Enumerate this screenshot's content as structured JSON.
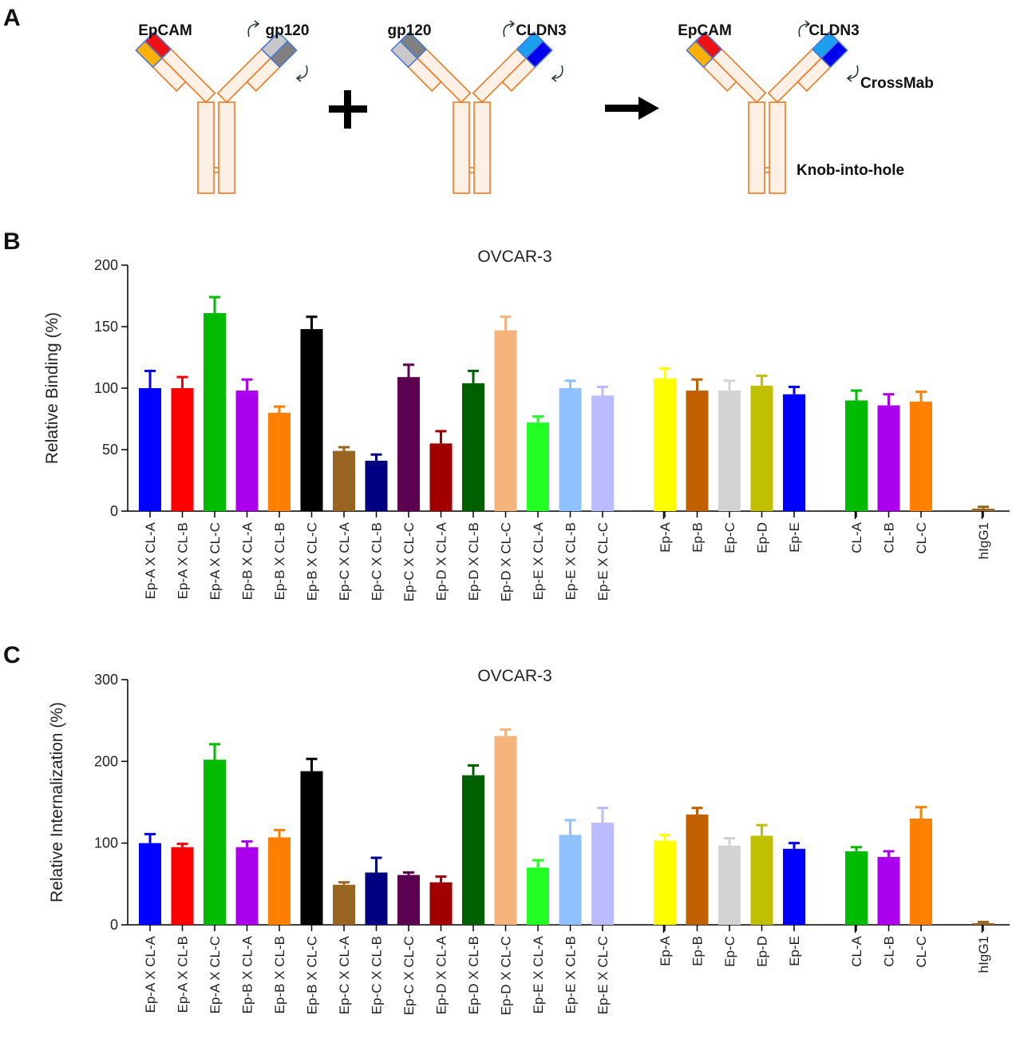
{
  "panel_labels": [
    "A",
    "B",
    "C"
  ],
  "diagram": {
    "labels": [
      "EpCAM",
      "gp120",
      "gp120",
      "CLDN3",
      "EpCAM",
      "CLDN3",
      "CrossMab",
      "Knob-into-hole"
    ]
  },
  "chart_data": [
    {
      "type": "bar",
      "title": "OVCAR-3",
      "ylabel": "Relative Binding (%)",
      "ylim": [
        0,
        200
      ],
      "yticks": [
        0,
        50,
        100,
        150,
        200
      ],
      "groups": [
        {
          "categories": [
            "Ep-A X CL-A",
            "Ep-A X CL-B",
            "Ep-A X CL-C",
            "Ep-B X CL-A",
            "Ep-B X CL-B",
            "Ep-B X CL-C",
            "Ep-C X CL-A",
            "Ep-C X CL-B",
            "Ep-C X CL-C",
            "Ep-D X CL-A",
            "Ep-D X CL-B",
            "Ep-D X CL-C",
            "Ep-E X CL-A",
            "Ep-E X CL-B",
            "Ep-E X CL-C"
          ],
          "values": [
            100,
            100,
            161,
            98,
            80,
            148,
            49,
            41,
            109,
            55,
            104,
            147,
            72,
            100,
            94
          ],
          "errors": [
            14,
            9,
            13,
            9,
            5,
            10,
            3,
            5,
            10,
            10,
            10,
            11,
            5,
            6,
            7
          ],
          "colors": [
            "#0000ff",
            "#ff0000",
            "#00bb00",
            "#aa00ee",
            "#ff8000",
            "#000000",
            "#996622",
            "#000080",
            "#5c0050",
            "#a00000",
            "#006000",
            "#f4b47c",
            "#22ff22",
            "#8fc0ff",
            "#bbbbff"
          ]
        },
        {
          "categories": [
            "Ep-A",
            "Ep-B",
            "Ep-C",
            "Ep-D",
            "Ep-E"
          ],
          "values": [
            108,
            98,
            98,
            102,
            95
          ],
          "errors": [
            8,
            9,
            8,
            8,
            6
          ],
          "colors": [
            "#ffff00",
            "#c06000",
            "#d3d3d3",
            "#c0c000",
            "#0000ff"
          ]
        },
        {
          "categories": [
            "CL-A",
            "CL-B",
            "CL-C"
          ],
          "values": [
            90,
            86,
            89
          ],
          "errors": [
            8,
            9,
            8
          ],
          "colors": [
            "#00bb00",
            "#aa00ee",
            "#ff8000"
          ]
        },
        {
          "categories": [
            "hIgG1"
          ],
          "values": [
            2
          ],
          "errors": [
            1.5
          ],
          "colors": [
            "#996622"
          ]
        }
      ]
    },
    {
      "type": "bar",
      "title": "OVCAR-3",
      "ylabel": "Relative Internalization (%)",
      "ylim": [
        0,
        300
      ],
      "yticks": [
        0,
        100,
        200,
        300
      ],
      "groups": [
        {
          "categories": [
            "Ep-A X CL-A",
            "Ep-A X CL-B",
            "Ep-A X CL-C",
            "Ep-B X CL-A",
            "Ep-B X CL-B",
            "Ep-B X CL-C",
            "Ep-C X CL-A",
            "Ep-C X CL-B",
            "Ep-C X CL-C",
            "Ep-D X CL-A",
            "Ep-D X CL-B",
            "Ep-D X CL-C",
            "Ep-E X CL-A",
            "Ep-E X CL-B",
            "Ep-E X CL-C"
          ],
          "values": [
            100,
            95,
            202,
            95,
            107,
            188,
            49,
            64,
            61,
            52,
            183,
            231,
            70,
            110,
            125
          ],
          "errors": [
            11,
            4,
            19,
            7,
            9,
            15,
            3,
            18,
            3,
            7,
            12,
            8,
            9,
            18,
            18
          ],
          "colors": [
            "#0000ff",
            "#ff0000",
            "#00bb00",
            "#aa00ee",
            "#ff8000",
            "#000000",
            "#996622",
            "#000080",
            "#5c0050",
            "#a00000",
            "#006000",
            "#f4b47c",
            "#22ff22",
            "#8fc0ff",
            "#bbbbff"
          ]
        },
        {
          "categories": [
            "Ep-A",
            "Ep-B",
            "Ep-C",
            "Ep-D",
            "Ep-E"
          ],
          "values": [
            103,
            135,
            97,
            109,
            93
          ],
          "errors": [
            7,
            8,
            9,
            13,
            7
          ],
          "colors": [
            "#ffff00",
            "#c06000",
            "#d3d3d3",
            "#c0c000",
            "#0000ff"
          ]
        },
        {
          "categories": [
            "CL-A",
            "CL-B",
            "CL-C"
          ],
          "values": [
            90,
            83,
            130
          ],
          "errors": [
            5,
            7,
            14
          ],
          "colors": [
            "#00bb00",
            "#aa00ee",
            "#ff8000"
          ]
        },
        {
          "categories": [
            "hIgG1"
          ],
          "values": [
            2
          ],
          "errors": [
            1.5
          ],
          "colors": [
            "#996622"
          ]
        }
      ]
    }
  ]
}
